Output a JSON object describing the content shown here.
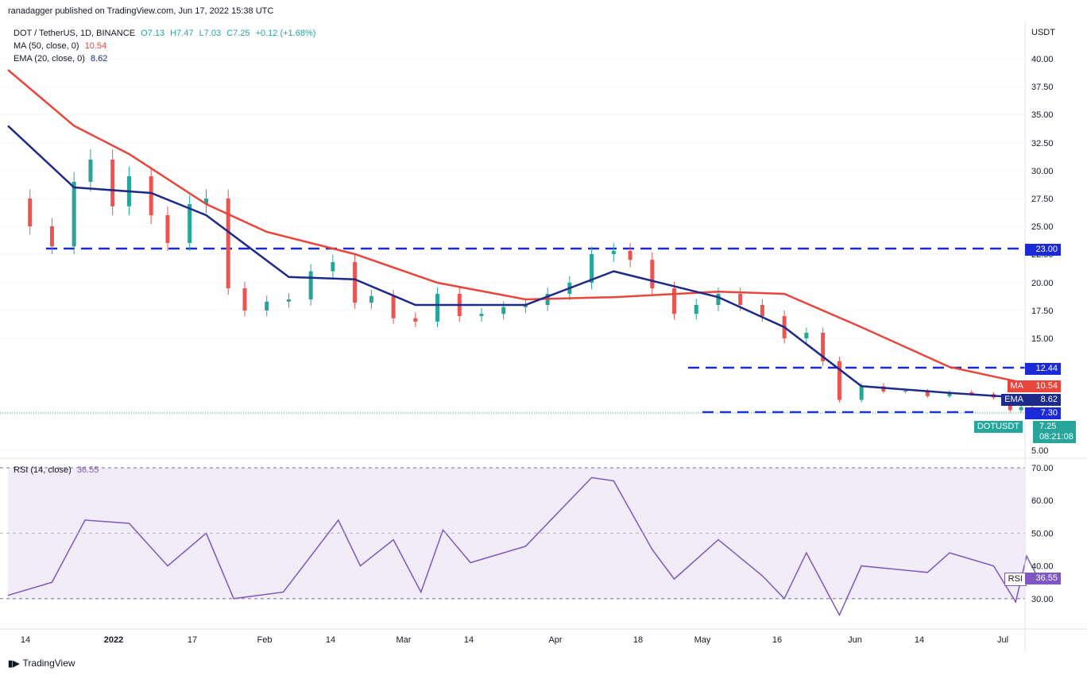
{
  "header": {
    "published_by": "ranadagger published on TradingView.com, Jun 17, 2022 15:38 UTC"
  },
  "symbol_line": {
    "symbol": "DOT / TetherUS, 1D, BINANCE",
    "open": "O7.13",
    "high": "H7.47",
    "low": "L7.03",
    "close": "C7.25",
    "change": "+0.12 (+1.68%)"
  },
  "ma_line": {
    "label": "MA (50, close, 0)",
    "value": "10.54"
  },
  "ema_line": {
    "label": "EMA (20, close, 0)",
    "value": "8.62"
  },
  "rsi_line": {
    "label": "RSI (14, close)",
    "value": "36.55"
  },
  "price_axis": {
    "currency": "USDT",
    "ticks": [
      "40.00",
      "37.50",
      "35.00",
      "32.50",
      "30.00",
      "27.50",
      "25.00",
      "22.50",
      "20.00",
      "17.50",
      "15.00",
      "5.00"
    ]
  },
  "rsi_axis": {
    "ticks": [
      "70.00",
      "60.00",
      "50.00",
      "40.00",
      "30.00"
    ]
  },
  "x_axis": {
    "ticks": [
      "14",
      "2022",
      "17",
      "Feb",
      "14",
      "Mar",
      "14",
      "Apr",
      "18",
      "May",
      "16",
      "Jun",
      "14",
      "Jul"
    ]
  },
  "tags": {
    "level_23": "23.00",
    "level_1244": "12.44",
    "ma_label": "MA",
    "ma_value": "10.54",
    "ema_label": "EMA",
    "ema_value": "8.62",
    "level_730": "7.30",
    "symbol_tag": "DOTUSDT",
    "price_value": "7.25",
    "countdown": "08:21:08",
    "rsi_label": "RSI",
    "rsi_value": "36.55"
  },
  "colors": {
    "up": "#26a69a",
    "down": "#ef5350",
    "ma": "#e8453c",
    "ema": "#1e2a8a",
    "level": "#1a2ad6",
    "rsi": "#7e57c2",
    "rsi_band": "#ede7f6"
  },
  "branding": {
    "name": "TradingView"
  },
  "chart_data": {
    "type": "candlestick",
    "title": "DOT / TetherUS, 1D, BINANCE",
    "y_unit": "USDT",
    "horizontal_levels": [
      23.0,
      12.44,
      7.3
    ],
    "close_series": [
      {
        "date": "2021-12-12",
        "close": 27.5
      },
      {
        "date": "2021-12-16",
        "close": 25.0
      },
      {
        "date": "2021-12-20",
        "close": 23.2
      },
      {
        "date": "2021-12-24",
        "close": 29.0
      },
      {
        "date": "2021-12-27",
        "close": 31.0
      },
      {
        "date": "2021-12-31",
        "close": 26.8
      },
      {
        "date": "2022-01-03",
        "close": 29.5
      },
      {
        "date": "2022-01-07",
        "close": 26.0
      },
      {
        "date": "2022-01-10",
        "close": 23.5
      },
      {
        "date": "2022-01-14",
        "close": 27.0
      },
      {
        "date": "2022-01-17",
        "close": 27.5
      },
      {
        "date": "2022-01-21",
        "close": 19.5
      },
      {
        "date": "2022-01-24",
        "close": 17.5
      },
      {
        "date": "2022-01-28",
        "close": 18.3
      },
      {
        "date": "2022-02-01",
        "close": 18.5
      },
      {
        "date": "2022-02-05",
        "close": 21.0
      },
      {
        "date": "2022-02-09",
        "close": 21.8
      },
      {
        "date": "2022-02-13",
        "close": 18.2
      },
      {
        "date": "2022-02-16",
        "close": 18.8
      },
      {
        "date": "2022-02-20",
        "close": 16.8
      },
      {
        "date": "2022-02-24",
        "close": 16.5
      },
      {
        "date": "2022-02-28",
        "close": 19.0
      },
      {
        "date": "2022-03-04",
        "close": 17.0
      },
      {
        "date": "2022-03-08",
        "close": 17.2
      },
      {
        "date": "2022-03-12",
        "close": 17.8
      },
      {
        "date": "2022-03-16",
        "close": 18.0
      },
      {
        "date": "2022-03-20",
        "close": 19.0
      },
      {
        "date": "2022-03-24",
        "close": 20.0
      },
      {
        "date": "2022-03-28",
        "close": 22.5
      },
      {
        "date": "2022-04-01",
        "close": 22.8
      },
      {
        "date": "2022-04-04",
        "close": 22.0
      },
      {
        "date": "2022-04-08",
        "close": 19.5
      },
      {
        "date": "2022-04-12",
        "close": 17.2
      },
      {
        "date": "2022-04-16",
        "close": 18.0
      },
      {
        "date": "2022-04-20",
        "close": 19.0
      },
      {
        "date": "2022-04-24",
        "close": 18.0
      },
      {
        "date": "2022-04-28",
        "close": 17.0
      },
      {
        "date": "2022-05-02",
        "close": 15.0
      },
      {
        "date": "2022-05-06",
        "close": 15.5
      },
      {
        "date": "2022-05-09",
        "close": 13.0
      },
      {
        "date": "2022-05-12",
        "close": 8.5
      },
      {
        "date": "2022-05-16",
        "close": 10.5
      },
      {
        "date": "2022-05-20",
        "close": 9.7
      },
      {
        "date": "2022-05-24",
        "close": 9.8
      },
      {
        "date": "2022-05-28",
        "close": 9.0
      },
      {
        "date": "2022-06-01",
        "close": 9.6
      },
      {
        "date": "2022-06-05",
        "close": 9.3
      },
      {
        "date": "2022-06-09",
        "close": 8.8
      },
      {
        "date": "2022-06-12",
        "close": 7.5
      },
      {
        "date": "2022-06-14",
        "close": 7.8
      },
      {
        "date": "2022-06-16",
        "close": 7.13
      },
      {
        "date": "2022-06-17",
        "close": 7.25
      }
    ],
    "ma50": [
      {
        "date": "2021-12-12",
        "value": 39.0
      },
      {
        "date": "2021-12-24",
        "value": 34.0
      },
      {
        "date": "2022-01-03",
        "value": 31.5
      },
      {
        "date": "2022-01-17",
        "value": 27.0
      },
      {
        "date": "2022-01-28",
        "value": 24.5
      },
      {
        "date": "2022-02-13",
        "value": 22.5
      },
      {
        "date": "2022-02-28",
        "value": 20.0
      },
      {
        "date": "2022-03-16",
        "value": 18.5
      },
      {
        "date": "2022-04-01",
        "value": 18.7
      },
      {
        "date": "2022-04-20",
        "value": 19.2
      },
      {
        "date": "2022-05-02",
        "value": 19.0
      },
      {
        "date": "2022-05-16",
        "value": 16.0
      },
      {
        "date": "2022-06-01",
        "value": 12.5
      },
      {
        "date": "2022-06-17",
        "value": 10.54
      }
    ],
    "ema20": [
      {
        "date": "2021-12-12",
        "value": 34.0
      },
      {
        "date": "2021-12-24",
        "value": 28.5
      },
      {
        "date": "2022-01-07",
        "value": 28.0
      },
      {
        "date": "2022-01-17",
        "value": 26.0
      },
      {
        "date": "2022-02-01",
        "value": 20.5
      },
      {
        "date": "2022-02-13",
        "value": 20.3
      },
      {
        "date": "2022-02-24",
        "value": 18.0
      },
      {
        "date": "2022-03-16",
        "value": 18.0
      },
      {
        "date": "2022-04-01",
        "value": 21.0
      },
      {
        "date": "2022-04-20",
        "value": 18.7
      },
      {
        "date": "2022-05-02",
        "value": 16.0
      },
      {
        "date": "2022-05-16",
        "value": 10.5
      },
      {
        "date": "2022-06-01",
        "value": 9.5
      },
      {
        "date": "2022-06-17",
        "value": 8.62
      }
    ],
    "rsi14": [
      {
        "date": "2021-12-12",
        "value": 31
      },
      {
        "date": "2021-12-20",
        "value": 35
      },
      {
        "date": "2021-12-26",
        "value": 54
      },
      {
        "date": "2022-01-03",
        "value": 53
      },
      {
        "date": "2022-01-10",
        "value": 40
      },
      {
        "date": "2022-01-17",
        "value": 50
      },
      {
        "date": "2022-01-22",
        "value": 30
      },
      {
        "date": "2022-01-31",
        "value": 32
      },
      {
        "date": "2022-02-10",
        "value": 54
      },
      {
        "date": "2022-02-14",
        "value": 40
      },
      {
        "date": "2022-02-20",
        "value": 48
      },
      {
        "date": "2022-02-25",
        "value": 32
      },
      {
        "date": "2022-03-01",
        "value": 51
      },
      {
        "date": "2022-03-06",
        "value": 41
      },
      {
        "date": "2022-03-16",
        "value": 46
      },
      {
        "date": "2022-03-28",
        "value": 67
      },
      {
        "date": "2022-04-01",
        "value": 66
      },
      {
        "date": "2022-04-08",
        "value": 45
      },
      {
        "date": "2022-04-12",
        "value": 36
      },
      {
        "date": "2022-04-20",
        "value": 48
      },
      {
        "date": "2022-04-28",
        "value": 37
      },
      {
        "date": "2022-05-02",
        "value": 30
      },
      {
        "date": "2022-05-06",
        "value": 44
      },
      {
        "date": "2022-05-12",
        "value": 25
      },
      {
        "date": "2022-05-16",
        "value": 40
      },
      {
        "date": "2022-05-28",
        "value": 38
      },
      {
        "date": "2022-06-01",
        "value": 44
      },
      {
        "date": "2022-06-09",
        "value": 40
      },
      {
        "date": "2022-06-13",
        "value": 29
      },
      {
        "date": "2022-06-15",
        "value": 43
      },
      {
        "date": "2022-06-17",
        "value": 36.55
      }
    ],
    "rsi_levels": [
      70,
      50,
      30
    ]
  }
}
